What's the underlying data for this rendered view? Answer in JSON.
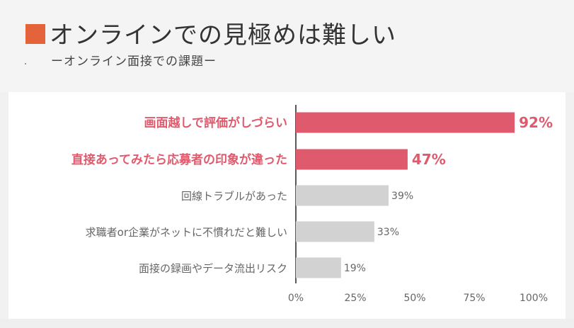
{
  "header": {
    "title": "オンラインでの見極めは難しい",
    "subtitle": "ーオンライン面接での課題ー"
  },
  "colors": {
    "accent": "#e4633b",
    "highlight": "#e05a6e",
    "muted_bar": "#d2d2d2",
    "muted_text": "#666666"
  },
  "chart_data": {
    "type": "bar",
    "orientation": "horizontal",
    "categories": [
      "画面越しで評価がしづらい",
      "直接あってみたら応募者の印象が違った",
      "回線トラブルがあった",
      "求職者or企業がネットに不慣れだと難しい",
      "面接の録画やデータ流出リスク"
    ],
    "values": [
      92,
      47,
      39,
      33,
      19
    ],
    "value_labels": [
      "92%",
      "47%",
      "39%",
      "33%",
      "19%"
    ],
    "highlighted": [
      true,
      true,
      false,
      false,
      false
    ],
    "xlim": [
      0,
      100
    ],
    "x_ticks": [
      0,
      25,
      50,
      75,
      100
    ],
    "x_tick_labels": [
      "0%",
      "25%",
      "50%",
      "75%",
      "100%"
    ]
  }
}
